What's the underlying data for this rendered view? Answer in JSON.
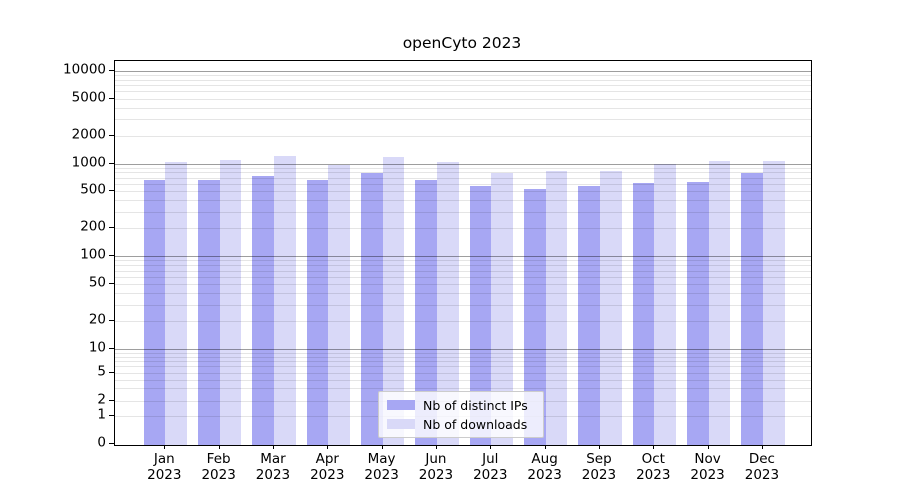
{
  "chart_data": {
    "type": "bar",
    "title": "openCyto 2023",
    "yscale": "symlog",
    "ylim": [
      0,
      12800
    ],
    "grid": true,
    "legend_position": "bottom-center",
    "categories": [
      "Jan",
      "Feb",
      "Mar",
      "Apr",
      "May",
      "Jun",
      "Jul",
      "Aug",
      "Sep",
      "Oct",
      "Nov",
      "Dec"
    ],
    "category_year": "2023",
    "yticks": [
      10000,
      5000,
      2000,
      1000,
      500,
      200,
      100,
      50,
      20,
      10,
      5,
      2,
      1,
      0
    ],
    "series": [
      {
        "name": "Nb of distinct IPs",
        "color": "#a7a7f3",
        "values": [
          660,
          663,
          734,
          657,
          784,
          672,
          575,
          536,
          570,
          612,
          633,
          795
        ]
      },
      {
        "name": "Nb of downloads",
        "color": "#d9d9f8",
        "values": [
          1038,
          1085,
          1205,
          971,
          1175,
          1040,
          788,
          840,
          830,
          985,
          1062,
          1060
        ]
      }
    ]
  }
}
